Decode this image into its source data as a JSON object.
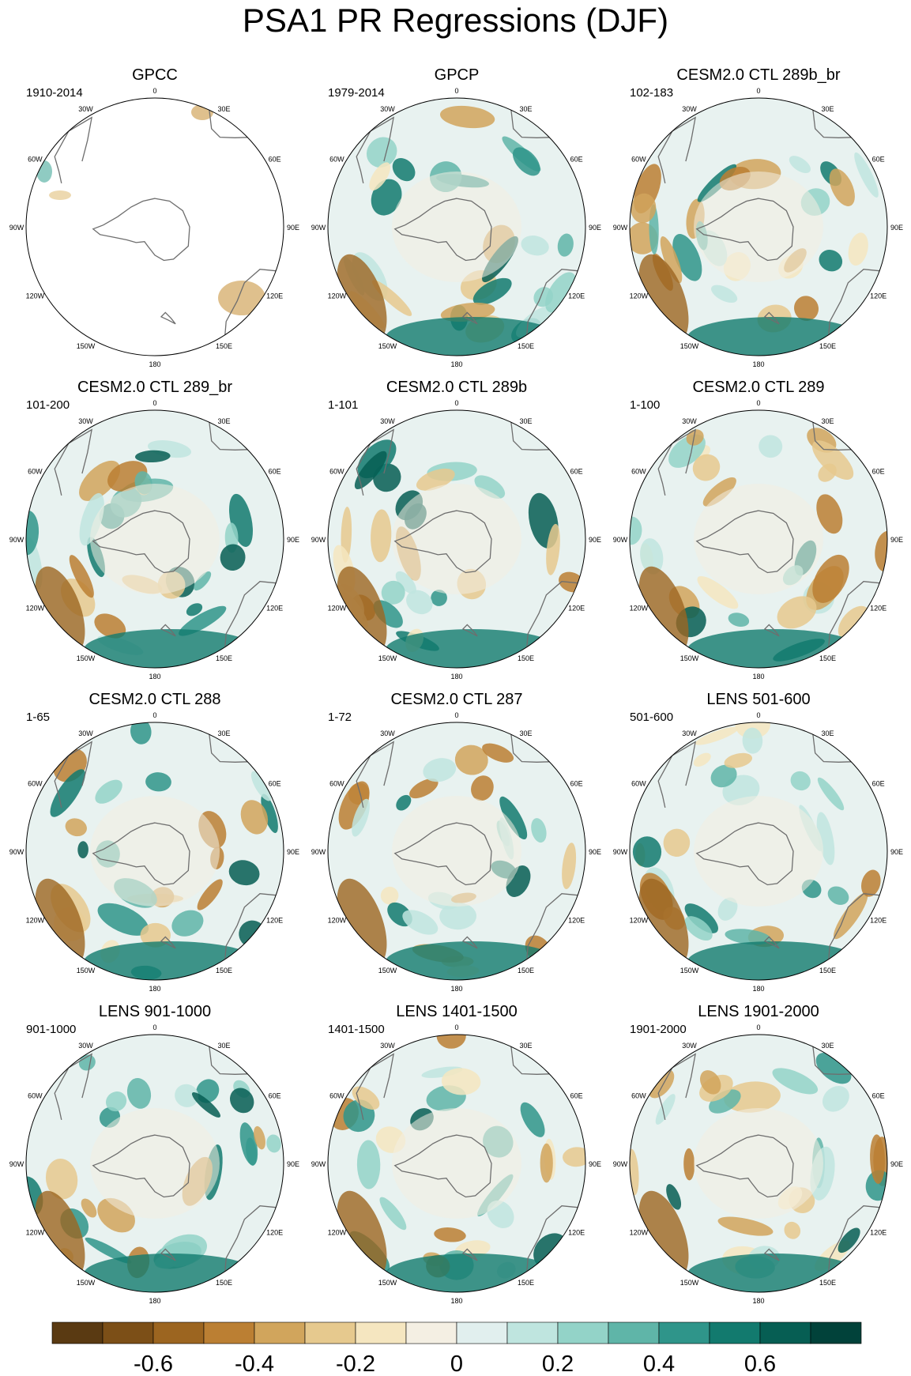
{
  "title": "PSA1 PR Regressions (DJF)",
  "lon_labels": [
    "0",
    "30E",
    "60E",
    "90E",
    "120E",
    "150E",
    "180",
    "150W",
    "120W",
    "90W",
    "60W",
    "30W"
  ],
  "panels": [
    {
      "title": "GPCC",
      "years": "1910-2014",
      "coverage": "land-only"
    },
    {
      "title": "GPCP",
      "years": "1979-2014",
      "coverage": "full"
    },
    {
      "title": "CESM2.0 CTL 289b_br",
      "years": "102-183",
      "coverage": "full"
    },
    {
      "title": "CESM2.0 CTL 289_br",
      "years": "101-200",
      "coverage": "full"
    },
    {
      "title": "CESM2.0 CTL 289b",
      "years": "1-101",
      "coverage": "full"
    },
    {
      "title": "CESM2.0 CTL 289",
      "years": "1-100",
      "coverage": "full"
    },
    {
      "title": "CESM2.0 CTL 288",
      "years": "1-65",
      "coverage": "full"
    },
    {
      "title": "CESM2.0 CTL 287",
      "years": "1-72",
      "coverage": "full"
    },
    {
      "title": "LENS 501-600",
      "years": "501-600",
      "coverage": "full"
    },
    {
      "title": "LENS 901-1000",
      "years": "901-1000",
      "coverage": "full"
    },
    {
      "title": "LENS 1401-1500",
      "years": "1401-1500",
      "coverage": "full"
    },
    {
      "title": "LENS 1901-2000",
      "years": "1901-2000",
      "coverage": "full"
    }
  ],
  "colorbar": {
    "colors": [
      "#5a3a12",
      "#7c4f17",
      "#9c6520",
      "#bb7f33",
      "#d1a55c",
      "#e6c98e",
      "#f5e6c0",
      "#f4efe3",
      "#e1efee",
      "#bfe5df",
      "#93d3c8",
      "#5fb5a8",
      "#2f958a",
      "#127a6e",
      "#065e53",
      "#01423a"
    ],
    "tick_labels": [
      "-0.6",
      "-0.4",
      "-0.2",
      "0",
      "0.2",
      "0.4",
      "0.6"
    ]
  }
}
